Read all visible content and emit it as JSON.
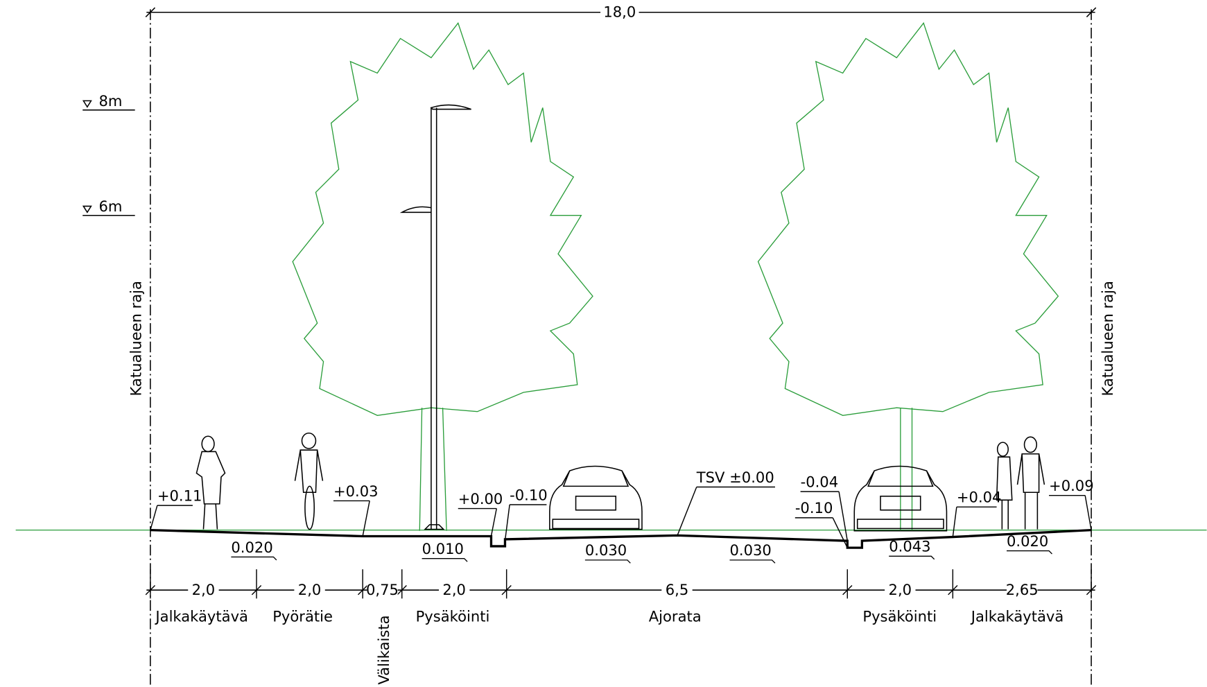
{
  "total_width": "18,0",
  "height_markers": [
    "8m",
    "6m"
  ],
  "boundary_labels": [
    "Katualueen raja",
    "Katualueen raja"
  ],
  "elevations": [
    "+0.11",
    "+0.03",
    "+0.00",
    "-0.10",
    "TSV ±0.00",
    "-0.04",
    "-0.10",
    "+0.04",
    "+0.09"
  ],
  "slopes": [
    "0.020",
    "0.010",
    "0.030",
    "0.030",
    "0.043",
    "0.020"
  ],
  "dimensions": [
    "2,0",
    "2,0",
    "0,75",
    "2,0",
    "6,5",
    "2,0",
    "2,65"
  ],
  "zones": [
    "Jalkakäytävä",
    "Pyörätie",
    "Välikaista",
    "Pysäköinti",
    "Ajorata",
    "Pysäköinti",
    "Jalkakäytävä"
  ]
}
